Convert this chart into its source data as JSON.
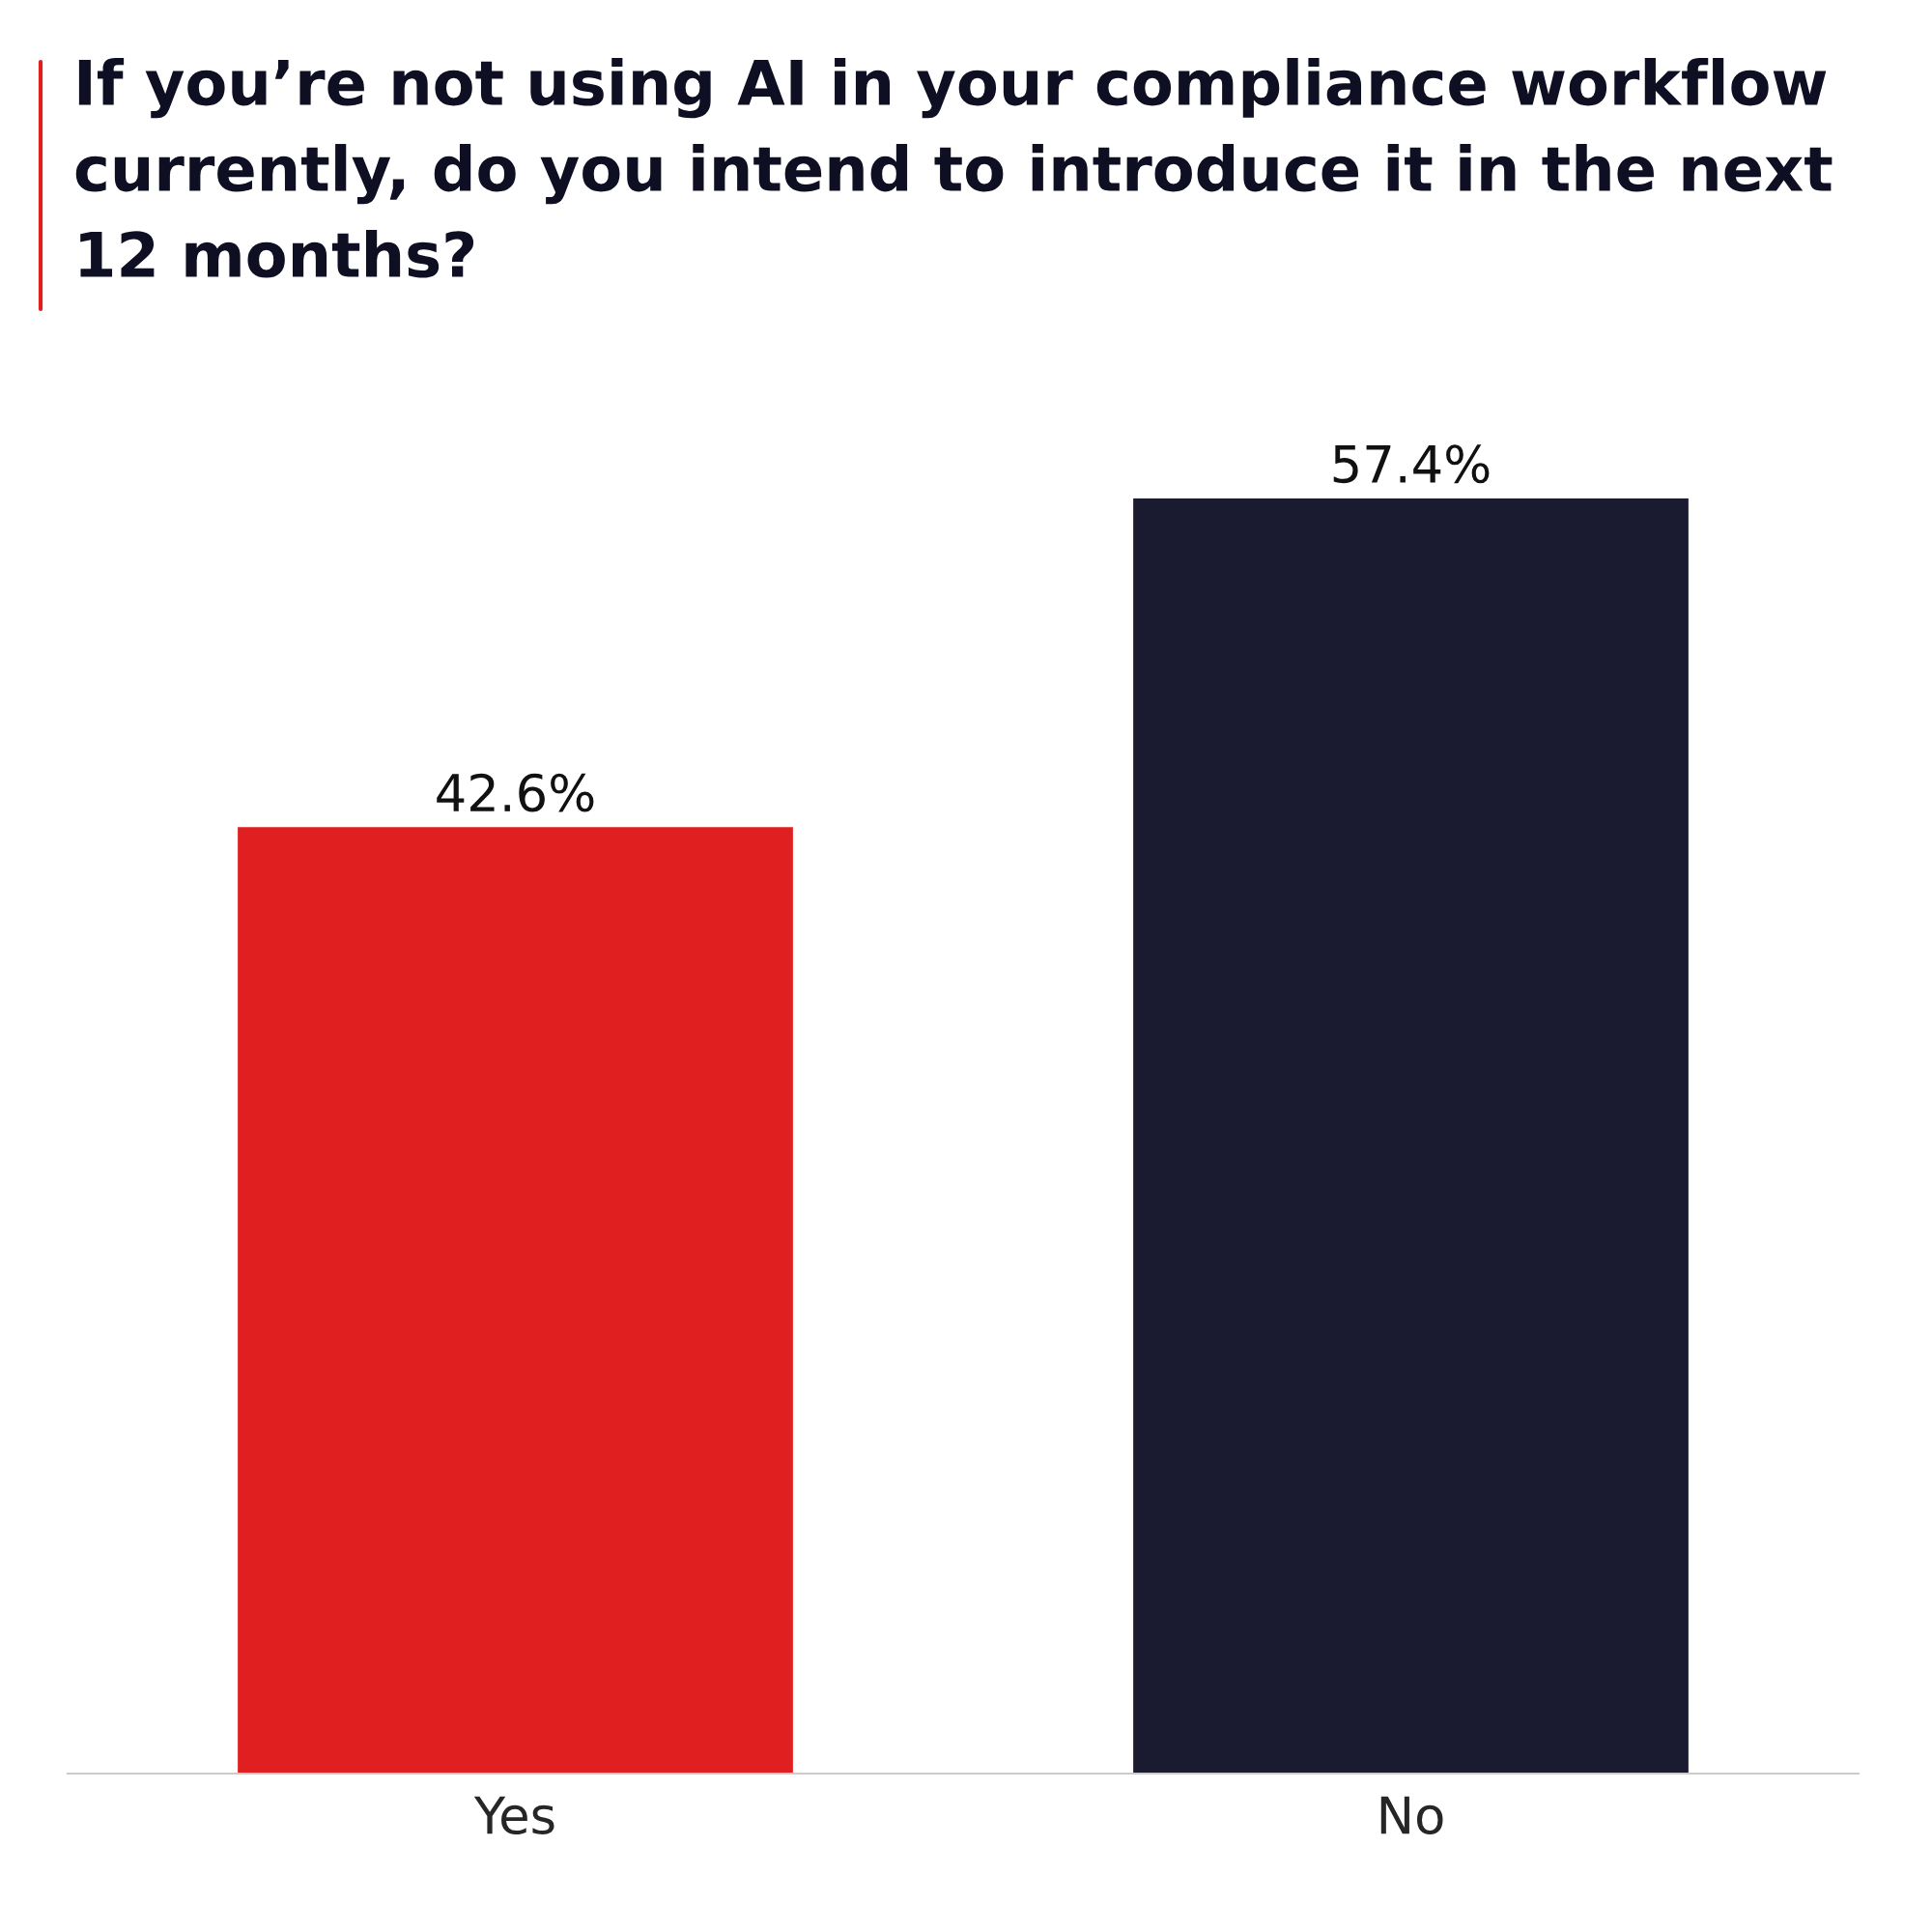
{
  "chart_data": {
    "type": "bar",
    "title": "If you’re not using AI in your compliance workflow currently, do you intend to introduce it in the next 12 months?",
    "categories": [
      "Yes",
      "No"
    ],
    "values": [
      42.6,
      57.4
    ],
    "colors": [
      "#e01f20",
      "#1a1a30"
    ],
    "value_labels": [
      "42.6%",
      "57.4%"
    ],
    "grid": false,
    "legend": false
  }
}
